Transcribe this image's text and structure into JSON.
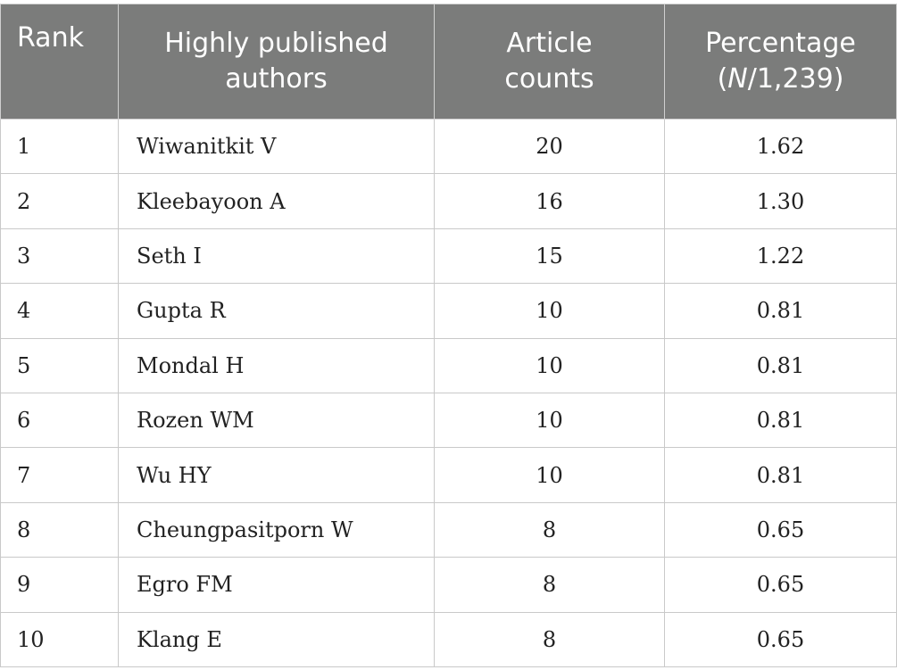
{
  "table": {
    "headers": {
      "rank": "Rank",
      "authors_line1": "Highly published",
      "authors_line2": "authors",
      "counts_line1": "Article",
      "counts_line2": "counts",
      "pct_line1": "Percentage",
      "pct_open": "(",
      "pct_n": "N",
      "pct_rest": "/1,239)"
    },
    "rows": [
      {
        "rank": "1",
        "author": "Wiwanitkit V",
        "count": "20",
        "percentage": "1.62"
      },
      {
        "rank": "2",
        "author": "Kleebayoon A",
        "count": "16",
        "percentage": "1.30"
      },
      {
        "rank": "3",
        "author": "Seth I",
        "count": "15",
        "percentage": "1.22"
      },
      {
        "rank": "4",
        "author": "Gupta R",
        "count": "10",
        "percentage": "0.81"
      },
      {
        "rank": "5",
        "author": "Mondal H",
        "count": "10",
        "percentage": "0.81"
      },
      {
        "rank": "6",
        "author": "Rozen WM",
        "count": "10",
        "percentage": "0.81"
      },
      {
        "rank": "7",
        "author": "Wu HY",
        "count": "10",
        "percentage": "0.81"
      },
      {
        "rank": "8",
        "author": "Cheungpasitporn W",
        "count": "8",
        "percentage": "0.65"
      },
      {
        "rank": "9",
        "author": "Egro FM",
        "count": "8",
        "percentage": "0.65"
      },
      {
        "rank": "10",
        "author": "Klang E",
        "count": "8",
        "percentage": "0.65"
      }
    ]
  }
}
